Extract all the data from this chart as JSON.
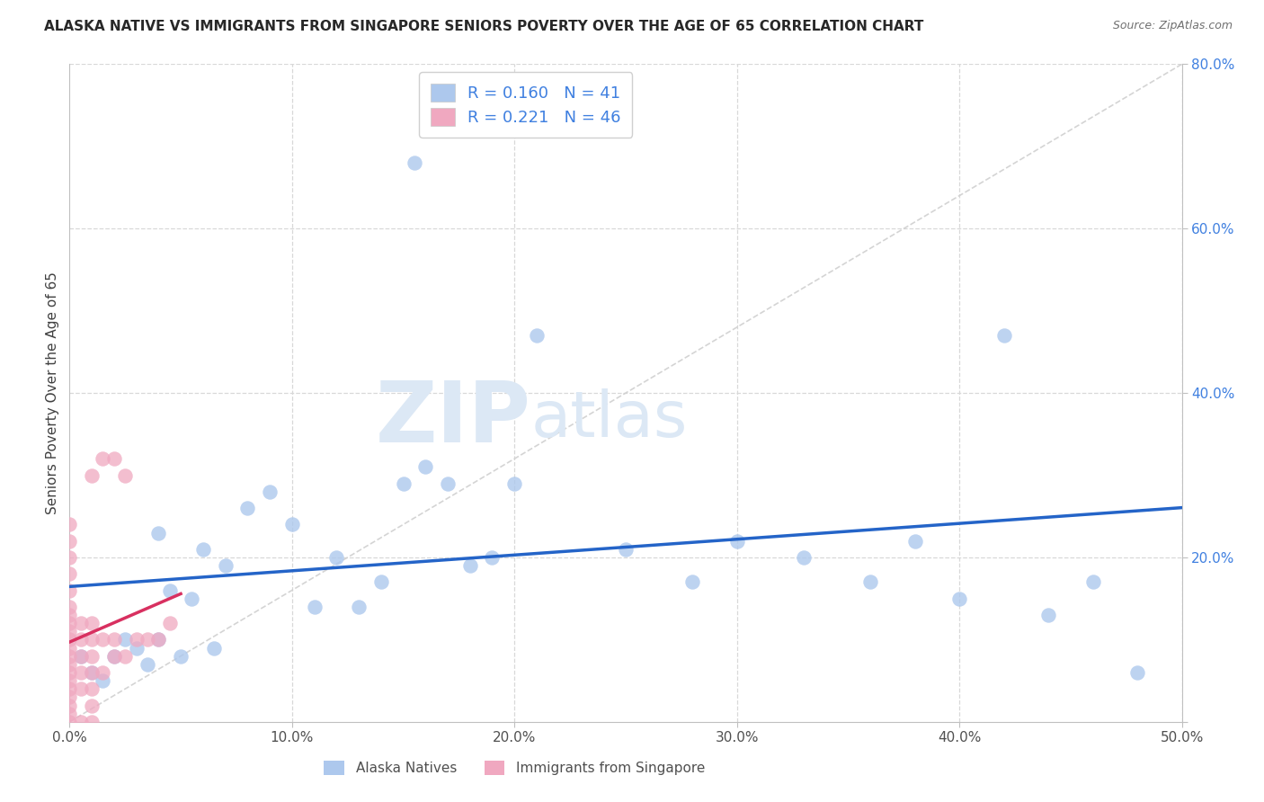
{
  "title": "ALASKA NATIVE VS IMMIGRANTS FROM SINGAPORE SENIORS POVERTY OVER THE AGE OF 65 CORRELATION CHART",
  "source": "Source: ZipAtlas.com",
  "ylabel": "Seniors Poverty Over the Age of 65",
  "xlim": [
    0.0,
    0.5
  ],
  "ylim": [
    0.0,
    0.8
  ],
  "alaska_R": 0.16,
  "alaska_N": 41,
  "singapore_R": 0.221,
  "singapore_N": 46,
  "alaska_scatter_color": "#adc8ed",
  "singapore_scatter_color": "#f0a8c0",
  "alaska_line_color": "#2464c8",
  "singapore_line_color": "#d83060",
  "diagonal_color": "#d0d0d0",
  "background_color": "#ffffff",
  "grid_color": "#d8d8d8",
  "watermark_color": "#dce8f5",
  "alaska_x": [
    0.005,
    0.01,
    0.015,
    0.02,
    0.025,
    0.03,
    0.035,
    0.04,
    0.04,
    0.045,
    0.05,
    0.055,
    0.06,
    0.065,
    0.07,
    0.08,
    0.09,
    0.1,
    0.11,
    0.12,
    0.13,
    0.14,
    0.15,
    0.155,
    0.16,
    0.17,
    0.18,
    0.19,
    0.2,
    0.21,
    0.25,
    0.28,
    0.3,
    0.33,
    0.36,
    0.38,
    0.4,
    0.42,
    0.44,
    0.46,
    0.48
  ],
  "alaska_y": [
    0.08,
    0.06,
    0.05,
    0.08,
    0.1,
    0.09,
    0.07,
    0.1,
    0.23,
    0.16,
    0.08,
    0.15,
    0.21,
    0.09,
    0.19,
    0.26,
    0.28,
    0.24,
    0.14,
    0.2,
    0.14,
    0.17,
    0.29,
    0.68,
    0.31,
    0.29,
    0.19,
    0.2,
    0.29,
    0.47,
    0.21,
    0.17,
    0.22,
    0.2,
    0.17,
    0.22,
    0.15,
    0.47,
    0.13,
    0.17,
    0.06
  ],
  "singapore_x": [
    0.0,
    0.0,
    0.0,
    0.0,
    0.0,
    0.0,
    0.0,
    0.0,
    0.0,
    0.0,
    0.0,
    0.0,
    0.0,
    0.0,
    0.0,
    0.0,
    0.0,
    0.0,
    0.0,
    0.0,
    0.005,
    0.005,
    0.005,
    0.005,
    0.005,
    0.005,
    0.01,
    0.01,
    0.01,
    0.01,
    0.01,
    0.01,
    0.01,
    0.01,
    0.015,
    0.015,
    0.015,
    0.02,
    0.02,
    0.02,
    0.025,
    0.025,
    0.03,
    0.035,
    0.04,
    0.045
  ],
  "singapore_y": [
    0.0,
    0.01,
    0.02,
    0.03,
    0.04,
    0.05,
    0.06,
    0.07,
    0.08,
    0.09,
    0.1,
    0.11,
    0.12,
    0.13,
    0.14,
    0.16,
    0.18,
    0.2,
    0.22,
    0.24,
    0.0,
    0.04,
    0.06,
    0.08,
    0.1,
    0.12,
    0.0,
    0.02,
    0.04,
    0.06,
    0.08,
    0.1,
    0.12,
    0.3,
    0.06,
    0.1,
    0.32,
    0.08,
    0.1,
    0.32,
    0.08,
    0.3,
    0.1,
    0.1,
    0.1,
    0.12
  ]
}
